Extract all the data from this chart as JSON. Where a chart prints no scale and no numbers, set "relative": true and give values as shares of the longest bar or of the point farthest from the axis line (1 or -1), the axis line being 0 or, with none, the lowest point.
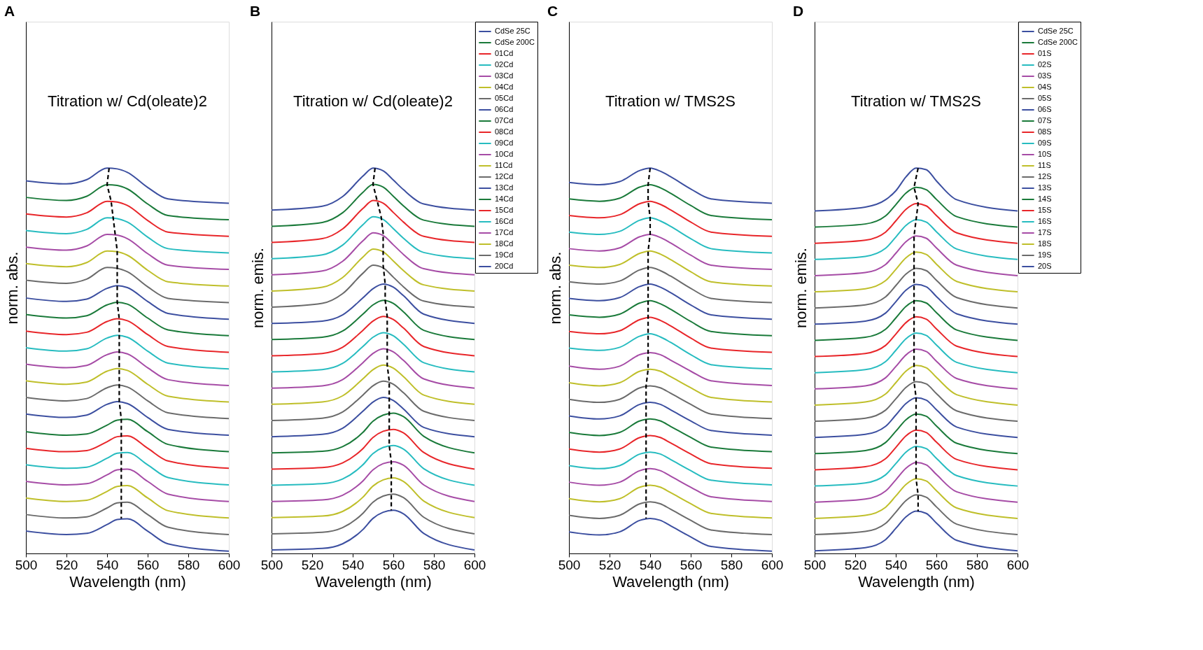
{
  "chart_data": [
    {
      "type": "line",
      "title": "A",
      "xlabel": "Wavelength (nm)",
      "ylabel": "norm. abs.",
      "annotations": [
        "Titration w/ Cd(oleate)2"
      ],
      "relative": true,
      "xlim": [
        500,
        600
      ],
      "xticks": [
        500,
        520,
        540,
        560,
        580,
        600
      ],
      "x": [
        500,
        520,
        530,
        540,
        545,
        550,
        560,
        570,
        600
      ],
      "series": [
        {
          "color": "#3c4fa0",
          "values": [
            0.967,
            0.959,
            0.97,
            1.0,
            0.998,
            0.989,
            0.95,
            0.92,
            0.909
          ]
        },
        {
          "color": "#1a7a3a",
          "values": [
            0.924,
            0.916,
            0.927,
            0.957,
            0.955,
            0.946,
            0.907,
            0.877,
            0.866
          ]
        },
        {
          "color": "#e8262a",
          "values": [
            0.881,
            0.873,
            0.884,
            0.914,
            0.912,
            0.903,
            0.864,
            0.834,
            0.823
          ]
        },
        {
          "color": "#27bcc0",
          "values": [
            0.838,
            0.83,
            0.841,
            0.871,
            0.869,
            0.86,
            0.821,
            0.791,
            0.78
          ]
        },
        {
          "color": "#a64ca6",
          "values": [
            0.795,
            0.787,
            0.798,
            0.828,
            0.826,
            0.817,
            0.778,
            0.748,
            0.737
          ]
        },
        {
          "color": "#bfbf2a",
          "values": [
            0.752,
            0.744,
            0.755,
            0.785,
            0.783,
            0.774,
            0.735,
            0.705,
            0.694
          ]
        },
        {
          "color": "#6b6b6b",
          "values": [
            0.709,
            0.701,
            0.712,
            0.742,
            0.74,
            0.731,
            0.692,
            0.662,
            0.651
          ]
        },
        {
          "color": "#3c4fa0",
          "values": [
            0.663,
            0.654,
            0.66,
            0.688,
            0.695,
            0.69,
            0.654,
            0.623,
            0.608
          ]
        },
        {
          "color": "#1a7a3a",
          "values": [
            0.62,
            0.611,
            0.617,
            0.645,
            0.652,
            0.647,
            0.611,
            0.58,
            0.565
          ]
        },
        {
          "color": "#e8262a",
          "values": [
            0.577,
            0.568,
            0.574,
            0.602,
            0.609,
            0.604,
            0.568,
            0.537,
            0.522
          ]
        },
        {
          "color": "#27bcc0",
          "values": [
            0.534,
            0.525,
            0.531,
            0.559,
            0.566,
            0.561,
            0.525,
            0.494,
            0.479
          ]
        },
        {
          "color": "#a64ca6",
          "values": [
            0.491,
            0.482,
            0.488,
            0.516,
            0.523,
            0.518,
            0.482,
            0.451,
            0.436
          ]
        },
        {
          "color": "#bfbf2a",
          "values": [
            0.448,
            0.439,
            0.445,
            0.473,
            0.48,
            0.475,
            0.439,
            0.408,
            0.393
          ]
        },
        {
          "color": "#6b6b6b",
          "values": [
            0.405,
            0.396,
            0.402,
            0.43,
            0.437,
            0.432,
            0.396,
            0.365,
            0.35
          ]
        },
        {
          "color": "#3c4fa0",
          "values": [
            0.362,
            0.353,
            0.359,
            0.387,
            0.394,
            0.389,
            0.353,
            0.322,
            0.307
          ]
        },
        {
          "color": "#1a7a3a",
          "values": [
            0.316,
            0.307,
            0.31,
            0.333,
            0.346,
            0.348,
            0.316,
            0.283,
            0.264
          ]
        },
        {
          "color": "#e8262a",
          "values": [
            0.273,
            0.264,
            0.267,
            0.29,
            0.303,
            0.305,
            0.273,
            0.24,
            0.221
          ]
        },
        {
          "color": "#27bcc0",
          "values": [
            0.23,
            0.221,
            0.224,
            0.247,
            0.26,
            0.262,
            0.23,
            0.197,
            0.178
          ]
        },
        {
          "color": "#a64ca6",
          "values": [
            0.187,
            0.178,
            0.181,
            0.204,
            0.217,
            0.219,
            0.187,
            0.154,
            0.135
          ]
        },
        {
          "color": "#bfbf2a",
          "values": [
            0.144,
            0.135,
            0.138,
            0.161,
            0.174,
            0.176,
            0.144,
            0.111,
            0.092
          ]
        },
        {
          "color": "#6b6b6b",
          "values": [
            0.101,
            0.092,
            0.095,
            0.118,
            0.131,
            0.133,
            0.101,
            0.068,
            0.049
          ]
        },
        {
          "color": "#3c4fa0",
          "values": [
            0.058,
            0.049,
            0.052,
            0.075,
            0.088,
            0.09,
            0.058,
            0.025,
            0.006
          ]
        },
        {
          "type": "line",
          "color": "#000000",
          "line_style": "dashed",
          "x": [
            541,
            540,
            542,
            543,
            544,
            545,
            545,
            545,
            545,
            546,
            546,
            546,
            546,
            546,
            546,
            547,
            547,
            547,
            547,
            547,
            547,
            547
          ],
          "values": [
            1.0,
            0.957,
            0.914,
            0.871,
            0.828,
            0.785,
            0.742,
            0.695,
            0.652,
            0.609,
            0.566,
            0.523,
            0.48,
            0.437,
            0.394,
            0.349,
            0.306,
            0.263,
            0.22,
            0.177,
            0.134,
            0.091
          ]
        }
      ]
    },
    {
      "type": "line",
      "title": "B",
      "xlabel": "Wavelength (nm)",
      "ylabel": "norm. emis.",
      "annotations": [
        "Titration w/ Cd(oleate)2"
      ],
      "relative": true,
      "legend": "top right",
      "xlim": [
        500,
        600
      ],
      "xticks": [
        500,
        520,
        540,
        560,
        580,
        600
      ],
      "x": [
        500,
        525,
        535,
        545,
        550,
        555,
        560,
        565,
        575,
        600
      ],
      "series": [
        {
          "name": "CdSe 25C",
          "color": "#3c4fa0",
          "values": [
            0.891,
            0.901,
            0.926,
            0.979,
            1.0,
            0.993,
            0.969,
            0.944,
            0.907,
            0.891
          ]
        },
        {
          "name": "CdSe 200C",
          "color": "#1a7a3a",
          "values": [
            0.849,
            0.859,
            0.884,
            0.937,
            0.958,
            0.951,
            0.927,
            0.902,
            0.865,
            0.849
          ]
        },
        {
          "name": "01Cd",
          "color": "#e8262a",
          "values": [
            0.807,
            0.817,
            0.842,
            0.895,
            0.916,
            0.909,
            0.885,
            0.86,
            0.823,
            0.807
          ]
        },
        {
          "name": "02Cd",
          "color": "#27bcc0",
          "values": [
            0.765,
            0.775,
            0.8,
            0.853,
            0.874,
            0.867,
            0.843,
            0.818,
            0.781,
            0.765
          ]
        },
        {
          "name": "03Cd",
          "color": "#a64ca6",
          "values": [
            0.723,
            0.733,
            0.758,
            0.811,
            0.832,
            0.825,
            0.801,
            0.776,
            0.739,
            0.723
          ]
        },
        {
          "name": "04Cd",
          "color": "#bfbf2a",
          "values": [
            0.681,
            0.691,
            0.716,
            0.769,
            0.79,
            0.783,
            0.759,
            0.734,
            0.697,
            0.681
          ]
        },
        {
          "name": "05Cd",
          "color": "#6b6b6b",
          "values": [
            0.639,
            0.649,
            0.674,
            0.727,
            0.748,
            0.741,
            0.717,
            0.692,
            0.655,
            0.639
          ]
        },
        {
          "name": "06Cd",
          "color": "#3c4fa0",
          "values": [
            0.597,
            0.603,
            0.619,
            0.663,
            0.687,
            0.699,
            0.691,
            0.669,
            0.621,
            0.597
          ]
        },
        {
          "name": "07Cd",
          "color": "#1a7a3a",
          "values": [
            0.555,
            0.561,
            0.577,
            0.621,
            0.645,
            0.657,
            0.649,
            0.627,
            0.579,
            0.555
          ]
        },
        {
          "name": "08Cd",
          "color": "#e8262a",
          "values": [
            0.513,
            0.519,
            0.535,
            0.579,
            0.603,
            0.615,
            0.607,
            0.585,
            0.537,
            0.513
          ]
        },
        {
          "name": "09Cd",
          "color": "#27bcc0",
          "values": [
            0.471,
            0.477,
            0.493,
            0.537,
            0.561,
            0.573,
            0.565,
            0.543,
            0.495,
            0.471
          ]
        },
        {
          "name": "10Cd",
          "color": "#a64ca6",
          "values": [
            0.429,
            0.435,
            0.451,
            0.495,
            0.519,
            0.531,
            0.523,
            0.501,
            0.453,
            0.429
          ]
        },
        {
          "name": "11Cd",
          "color": "#bfbf2a",
          "values": [
            0.387,
            0.393,
            0.409,
            0.453,
            0.477,
            0.489,
            0.481,
            0.459,
            0.411,
            0.387
          ]
        },
        {
          "name": "12Cd",
          "color": "#6b6b6b",
          "values": [
            0.345,
            0.351,
            0.367,
            0.411,
            0.435,
            0.447,
            0.439,
            0.417,
            0.369,
            0.345
          ]
        },
        {
          "name": "13Cd",
          "color": "#3c4fa0",
          "values": [
            0.303,
            0.309,
            0.325,
            0.369,
            0.393,
            0.405,
            0.397,
            0.375,
            0.327,
            0.303
          ]
        },
        {
          "name": "14Cd",
          "color": "#1a7a3a",
          "values": [
            0.261,
            0.265,
            0.277,
            0.314,
            0.343,
            0.359,
            0.364,
            0.355,
            0.304,
            0.261
          ]
        },
        {
          "name": "15Cd",
          "color": "#e8262a",
          "values": [
            0.219,
            0.223,
            0.235,
            0.272,
            0.301,
            0.317,
            0.322,
            0.313,
            0.262,
            0.219
          ]
        },
        {
          "name": "16Cd",
          "color": "#27bcc0",
          "values": [
            0.177,
            0.181,
            0.193,
            0.23,
            0.259,
            0.275,
            0.28,
            0.271,
            0.22,
            0.177
          ]
        },
        {
          "name": "17Cd",
          "color": "#a64ca6",
          "values": [
            0.135,
            0.139,
            0.151,
            0.188,
            0.217,
            0.233,
            0.238,
            0.229,
            0.178,
            0.135
          ]
        },
        {
          "name": "18Cd",
          "color": "#bfbf2a",
          "values": [
            0.093,
            0.097,
            0.109,
            0.146,
            0.175,
            0.191,
            0.196,
            0.187,
            0.136,
            0.093
          ]
        },
        {
          "name": "19Cd",
          "color": "#6b6b6b",
          "values": [
            0.051,
            0.055,
            0.067,
            0.104,
            0.133,
            0.149,
            0.154,
            0.145,
            0.094,
            0.051
          ]
        },
        {
          "name": "20Cd",
          "color": "#3c4fa0",
          "values": [
            0.009,
            0.013,
            0.025,
            0.062,
            0.091,
            0.107,
            0.112,
            0.103,
            0.052,
            0.009
          ]
        },
        {
          "type": "line",
          "color": "#000000",
          "line_style": "dashed",
          "x": [
            551,
            550,
            552,
            554,
            555,
            555,
            555,
            556,
            556,
            557,
            557,
            557,
            557,
            558,
            558,
            558,
            558,
            558,
            559,
            559,
            559,
            559
          ],
          "values": [
            1.0,
            0.958,
            0.916,
            0.874,
            0.832,
            0.79,
            0.748,
            0.699,
            0.657,
            0.615,
            0.573,
            0.531,
            0.489,
            0.447,
            0.405,
            0.364,
            0.322,
            0.28,
            0.238,
            0.196,
            0.154,
            0.112
          ]
        }
      ]
    },
    {
      "type": "line",
      "title": "C",
      "xlabel": "Wavelength (nm)",
      "ylabel": "norm. abs.",
      "annotations": [
        "Titration w/ TMS2S"
      ],
      "relative": true,
      "xlim": [
        500,
        600
      ],
      "xticks": [
        500,
        520,
        540,
        560,
        580,
        600
      ],
      "x": [
        500,
        515,
        525,
        535,
        540,
        545,
        550,
        560,
        570,
        600
      ],
      "series": [
        {
          "color": "#3c4fa0",
          "values": [
            0.963,
            0.957,
            0.965,
            0.994,
            1.0,
            0.992,
            0.978,
            0.946,
            0.92,
            0.909
          ]
        },
        {
          "color": "#1a7a3a",
          "values": [
            0.92,
            0.914,
            0.922,
            0.951,
            0.957,
            0.949,
            0.935,
            0.903,
            0.877,
            0.866
          ]
        },
        {
          "color": "#e8262a",
          "values": [
            0.877,
            0.871,
            0.879,
            0.908,
            0.914,
            0.906,
            0.892,
            0.86,
            0.834,
            0.823
          ]
        },
        {
          "color": "#27bcc0",
          "values": [
            0.834,
            0.828,
            0.836,
            0.865,
            0.871,
            0.863,
            0.849,
            0.817,
            0.791,
            0.78
          ]
        },
        {
          "color": "#a64ca6",
          "values": [
            0.791,
            0.785,
            0.793,
            0.822,
            0.828,
            0.82,
            0.806,
            0.774,
            0.748,
            0.737
          ]
        },
        {
          "color": "#bfbf2a",
          "values": [
            0.748,
            0.742,
            0.75,
            0.779,
            0.785,
            0.777,
            0.763,
            0.731,
            0.705,
            0.694
          ]
        },
        {
          "color": "#6b6b6b",
          "values": [
            0.705,
            0.699,
            0.707,
            0.736,
            0.742,
            0.734,
            0.72,
            0.688,
            0.662,
            0.651
          ]
        },
        {
          "color": "#3c4fa0",
          "values": [
            0.662,
            0.656,
            0.664,
            0.693,
            0.699,
            0.691,
            0.677,
            0.645,
            0.619,
            0.608
          ]
        },
        {
          "color": "#1a7a3a",
          "values": [
            0.619,
            0.613,
            0.621,
            0.65,
            0.656,
            0.648,
            0.634,
            0.602,
            0.576,
            0.565
          ]
        },
        {
          "color": "#e8262a",
          "values": [
            0.576,
            0.57,
            0.578,
            0.607,
            0.613,
            0.605,
            0.591,
            0.559,
            0.533,
            0.522
          ]
        },
        {
          "color": "#27bcc0",
          "values": [
            0.533,
            0.527,
            0.535,
            0.564,
            0.57,
            0.562,
            0.548,
            0.516,
            0.49,
            0.479
          ]
        },
        {
          "color": "#a64ca6",
          "values": [
            0.486,
            0.478,
            0.486,
            0.516,
            0.521,
            0.516,
            0.502,
            0.473,
            0.448,
            0.436
          ]
        },
        {
          "color": "#bfbf2a",
          "values": [
            0.443,
            0.435,
            0.443,
            0.473,
            0.478,
            0.473,
            0.459,
            0.43,
            0.405,
            0.393
          ]
        },
        {
          "color": "#6b6b6b",
          "values": [
            0.4,
            0.392,
            0.4,
            0.43,
            0.435,
            0.43,
            0.416,
            0.387,
            0.362,
            0.35
          ]
        },
        {
          "color": "#3c4fa0",
          "values": [
            0.357,
            0.349,
            0.357,
            0.387,
            0.392,
            0.387,
            0.373,
            0.344,
            0.319,
            0.307
          ]
        },
        {
          "color": "#1a7a3a",
          "values": [
            0.314,
            0.306,
            0.314,
            0.344,
            0.349,
            0.344,
            0.33,
            0.301,
            0.276,
            0.264
          ]
        },
        {
          "color": "#e8262a",
          "values": [
            0.271,
            0.263,
            0.271,
            0.301,
            0.306,
            0.301,
            0.287,
            0.258,
            0.233,
            0.221
          ]
        },
        {
          "color": "#27bcc0",
          "values": [
            0.228,
            0.22,
            0.228,
            0.258,
            0.263,
            0.258,
            0.244,
            0.215,
            0.19,
            0.178
          ]
        },
        {
          "color": "#a64ca6",
          "values": [
            0.185,
            0.177,
            0.185,
            0.215,
            0.22,
            0.215,
            0.201,
            0.172,
            0.147,
            0.135
          ]
        },
        {
          "color": "#bfbf2a",
          "values": [
            0.142,
            0.134,
            0.142,
            0.172,
            0.177,
            0.172,
            0.158,
            0.129,
            0.104,
            0.092
          ]
        },
        {
          "color": "#6b6b6b",
          "values": [
            0.099,
            0.091,
            0.099,
            0.129,
            0.134,
            0.129,
            0.115,
            0.086,
            0.061,
            0.049
          ]
        },
        {
          "color": "#3c4fa0",
          "values": [
            0.056,
            0.048,
            0.056,
            0.086,
            0.091,
            0.086,
            0.072,
            0.043,
            0.018,
            0.006
          ]
        },
        {
          "type": "line",
          "color": "#000000",
          "line_style": "dashed",
          "x": [
            540,
            539,
            539,
            540,
            540,
            539,
            539,
            539,
            539,
            539,
            539,
            539,
            539,
            538,
            538,
            538,
            538,
            538,
            538,
            538,
            538,
            538
          ],
          "values": [
            1.0,
            0.957,
            0.914,
            0.871,
            0.828,
            0.785,
            0.742,
            0.699,
            0.656,
            0.613,
            0.57,
            0.521,
            0.478,
            0.435,
            0.392,
            0.349,
            0.306,
            0.263,
            0.22,
            0.177,
            0.134,
            0.091
          ]
        }
      ]
    },
    {
      "type": "line",
      "title": "D",
      "xlabel": "Wavelength (nm)",
      "ylabel": "norm. emis.",
      "annotations": [
        "Titration w/ TMS2S"
      ],
      "relative": true,
      "legend": "top right",
      "xlim": [
        500,
        600
      ],
      "xticks": [
        500,
        520,
        540,
        560,
        580,
        600
      ],
      "x": [
        500,
        525,
        535,
        540,
        545,
        550,
        555,
        560,
        570,
        600
      ],
      "series": [
        {
          "name": "CdSe 25C",
          "color": "#3c4fa0",
          "values": [
            0.889,
            0.899,
            0.918,
            0.941,
            0.977,
            1.0,
            0.996,
            0.967,
            0.918,
            0.889
          ]
        },
        {
          "name": "CdSe 200C",
          "color": "#1a7a3a",
          "values": [
            0.847,
            0.855,
            0.876,
            0.905,
            0.935,
            0.95,
            0.944,
            0.919,
            0.874,
            0.847
          ]
        },
        {
          "name": "01S",
          "color": "#e8262a",
          "values": [
            0.805,
            0.813,
            0.834,
            0.863,
            0.893,
            0.908,
            0.902,
            0.877,
            0.832,
            0.805
          ]
        },
        {
          "name": "02S",
          "color": "#27bcc0",
          "values": [
            0.763,
            0.771,
            0.792,
            0.821,
            0.851,
            0.866,
            0.86,
            0.835,
            0.79,
            0.763
          ]
        },
        {
          "name": "03S",
          "color": "#a64ca6",
          "values": [
            0.721,
            0.729,
            0.75,
            0.779,
            0.809,
            0.824,
            0.818,
            0.793,
            0.748,
            0.721
          ]
        },
        {
          "name": "04S",
          "color": "#bfbf2a",
          "values": [
            0.679,
            0.687,
            0.708,
            0.737,
            0.767,
            0.782,
            0.776,
            0.751,
            0.706,
            0.679
          ]
        },
        {
          "name": "05S",
          "color": "#6b6b6b",
          "values": [
            0.637,
            0.645,
            0.666,
            0.695,
            0.725,
            0.74,
            0.734,
            0.709,
            0.664,
            0.637
          ]
        },
        {
          "name": "06S",
          "color": "#3c4fa0",
          "values": [
            0.595,
            0.603,
            0.624,
            0.653,
            0.683,
            0.698,
            0.692,
            0.667,
            0.622,
            0.595
          ]
        },
        {
          "name": "07S",
          "color": "#1a7a3a",
          "values": [
            0.553,
            0.561,
            0.582,
            0.611,
            0.641,
            0.656,
            0.65,
            0.625,
            0.58,
            0.553
          ]
        },
        {
          "name": "08S",
          "color": "#e8262a",
          "values": [
            0.511,
            0.519,
            0.54,
            0.569,
            0.599,
            0.614,
            0.608,
            0.583,
            0.538,
            0.511
          ]
        },
        {
          "name": "09S",
          "color": "#27bcc0",
          "values": [
            0.469,
            0.477,
            0.498,
            0.527,
            0.557,
            0.572,
            0.566,
            0.541,
            0.496,
            0.469
          ]
        },
        {
          "name": "10S",
          "color": "#a64ca6",
          "values": [
            0.427,
            0.435,
            0.456,
            0.485,
            0.515,
            0.53,
            0.524,
            0.499,
            0.454,
            0.427
          ]
        },
        {
          "name": "11S",
          "color": "#bfbf2a",
          "values": [
            0.385,
            0.393,
            0.414,
            0.443,
            0.473,
            0.488,
            0.482,
            0.457,
            0.412,
            0.385
          ]
        },
        {
          "name": "12S",
          "color": "#6b6b6b",
          "values": [
            0.343,
            0.351,
            0.372,
            0.401,
            0.431,
            0.446,
            0.44,
            0.415,
            0.37,
            0.343
          ]
        },
        {
          "name": "13S",
          "color": "#3c4fa0",
          "values": [
            0.301,
            0.309,
            0.33,
            0.359,
            0.389,
            0.404,
            0.398,
            0.373,
            0.328,
            0.301
          ]
        },
        {
          "name": "14S",
          "color": "#1a7a3a",
          "values": [
            0.259,
            0.267,
            0.288,
            0.317,
            0.347,
            0.362,
            0.356,
            0.331,
            0.286,
            0.259
          ]
        },
        {
          "name": "15S",
          "color": "#e8262a",
          "values": [
            0.217,
            0.225,
            0.246,
            0.275,
            0.305,
            0.32,
            0.314,
            0.289,
            0.244,
            0.217
          ]
        },
        {
          "name": "16S",
          "color": "#27bcc0",
          "values": [
            0.175,
            0.183,
            0.204,
            0.233,
            0.263,
            0.278,
            0.272,
            0.247,
            0.202,
            0.175
          ]
        },
        {
          "name": "17S",
          "color": "#a64ca6",
          "values": [
            0.133,
            0.141,
            0.162,
            0.191,
            0.221,
            0.236,
            0.23,
            0.205,
            0.16,
            0.133
          ]
        },
        {
          "name": "18S",
          "color": "#bfbf2a",
          "values": [
            0.091,
            0.099,
            0.12,
            0.149,
            0.179,
            0.194,
            0.188,
            0.163,
            0.118,
            0.091
          ]
        },
        {
          "name": "19S",
          "color": "#6b6b6b",
          "values": [
            0.049,
            0.057,
            0.078,
            0.107,
            0.137,
            0.152,
            0.146,
            0.121,
            0.076,
            0.049
          ]
        },
        {
          "name": "20S",
          "color": "#3c4fa0",
          "values": [
            0.007,
            0.015,
            0.036,
            0.065,
            0.095,
            0.11,
            0.104,
            0.079,
            0.034,
            0.007
          ]
        },
        {
          "type": "line",
          "color": "#000000",
          "line_style": "dashed",
          "x": [
            551,
            549,
            551,
            550,
            549,
            549,
            549,
            549,
            549,
            549,
            549,
            549,
            549,
            549,
            550,
            550,
            550,
            550,
            550,
            550,
            551,
            551
          ],
          "values": [
            1.0,
            0.95,
            0.908,
            0.866,
            0.824,
            0.782,
            0.74,
            0.698,
            0.656,
            0.614,
            0.572,
            0.53,
            0.488,
            0.446,
            0.404,
            0.362,
            0.32,
            0.278,
            0.236,
            0.194,
            0.152,
            0.11
          ]
        }
      ]
    }
  ]
}
